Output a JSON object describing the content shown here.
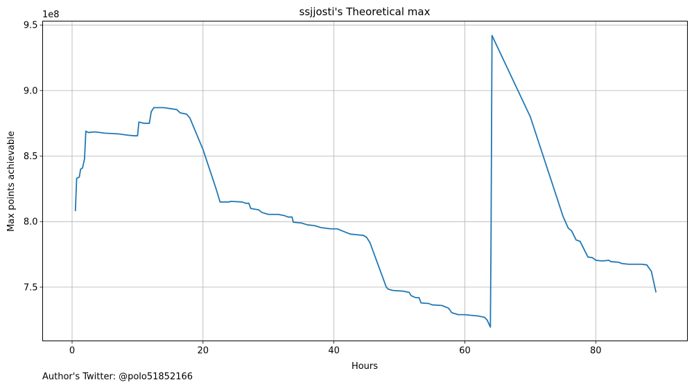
{
  "chart_data": {
    "type": "line",
    "title": "ssjjosti's Theoretical max",
    "xlabel": "Hours",
    "ylabel": "Max points achievable",
    "y_scale_label": "1e8",
    "xlim": [
      -4.5,
      94
    ],
    "ylim": [
      709000000,
      953000000
    ],
    "grid": true,
    "x_ticks": [
      0,
      20,
      40,
      60,
      80
    ],
    "y_ticks": [
      750000000,
      800000000,
      850000000,
      900000000,
      950000000
    ],
    "y_tick_labels": [
      "7.5",
      "8.0",
      "8.5",
      "9.0",
      "9.5"
    ],
    "line_color": "#1f77b4",
    "series": [
      {
        "name": "Max points achievable",
        "points": [
          [
            0.5,
            808000000
          ],
          [
            0.7,
            833000000
          ],
          [
            1.1,
            834000000
          ],
          [
            1.3,
            840000000
          ],
          [
            1.6,
            841000000
          ],
          [
            1.9,
            848000000
          ],
          [
            2.1,
            869000000
          ],
          [
            2.5,
            868000000
          ],
          [
            3.5,
            868500000
          ],
          [
            5,
            867500000
          ],
          [
            7,
            867000000
          ],
          [
            8.5,
            866000000
          ],
          [
            9.5,
            865500000
          ],
          [
            10.0,
            865500000
          ],
          [
            10.2,
            876000000
          ],
          [
            11,
            875000000
          ],
          [
            11.8,
            875000000
          ],
          [
            12.1,
            884000000
          ],
          [
            12.5,
            887000000
          ],
          [
            14,
            887000000
          ],
          [
            16,
            885500000
          ],
          [
            16.5,
            883000000
          ],
          [
            17.5,
            882000000
          ],
          [
            18,
            879000000
          ],
          [
            20,
            855000000
          ],
          [
            22,
            825000000
          ],
          [
            22.6,
            815000000
          ],
          [
            24,
            815000000
          ],
          [
            24.2,
            815500000
          ],
          [
            26,
            815000000
          ],
          [
            26.5,
            814000000
          ],
          [
            27,
            814000000
          ],
          [
            27.3,
            810000000
          ],
          [
            28.5,
            809000000
          ],
          [
            29,
            807000000
          ],
          [
            30,
            805500000
          ],
          [
            31.5,
            805500000
          ],
          [
            32.5,
            804500000
          ],
          [
            33,
            803500000
          ],
          [
            33.6,
            803500000
          ],
          [
            33.8,
            799500000
          ],
          [
            35,
            799000000
          ],
          [
            36,
            797500000
          ],
          [
            37,
            797000000
          ],
          [
            38,
            795500000
          ],
          [
            39.5,
            794500000
          ],
          [
            40.5,
            794500000
          ],
          [
            41.5,
            792500000
          ],
          [
            42.5,
            790500000
          ],
          [
            43.5,
            790000000
          ],
          [
            44.5,
            789500000
          ],
          [
            45,
            788000000
          ],
          [
            45.5,
            784000000
          ],
          [
            48,
            750000000
          ],
          [
            48.3,
            748500000
          ],
          [
            49,
            747500000
          ],
          [
            50.5,
            747000000
          ],
          [
            51.5,
            746000000
          ],
          [
            51.8,
            743500000
          ],
          [
            52.5,
            742000000
          ],
          [
            53,
            742000000
          ],
          [
            53.3,
            738000000
          ],
          [
            54.5,
            737500000
          ],
          [
            55,
            736500000
          ],
          [
            56.5,
            736000000
          ],
          [
            57.5,
            734000000
          ],
          [
            58,
            730500000
          ],
          [
            59,
            729000000
          ],
          [
            60,
            729000000
          ],
          [
            62,
            728000000
          ],
          [
            63,
            727000000
          ],
          [
            63.4,
            725000000
          ],
          [
            63.9,
            719500000
          ],
          [
            64.0,
            787000000
          ],
          [
            64.15,
            942000000
          ],
          [
            70,
            880000000
          ],
          [
            75,
            804000000
          ],
          [
            75.8,
            795000000
          ],
          [
            76.3,
            793000000
          ],
          [
            77,
            786000000
          ],
          [
            77.6,
            785000000
          ],
          [
            78.2,
            779000000
          ],
          [
            78.8,
            773000000
          ],
          [
            79.5,
            772500000
          ],
          [
            80,
            770500000
          ],
          [
            81,
            770000000
          ],
          [
            82,
            770500000
          ],
          [
            82.3,
            769500000
          ],
          [
            83.5,
            769000000
          ],
          [
            84,
            768000000
          ],
          [
            85,
            767500000
          ],
          [
            87,
            767500000
          ],
          [
            87.8,
            767000000
          ],
          [
            88.5,
            762000000
          ],
          [
            89.2,
            746000000
          ]
        ]
      }
    ]
  },
  "footer": {
    "author_note": "Author's Twitter: @polo51852166"
  }
}
